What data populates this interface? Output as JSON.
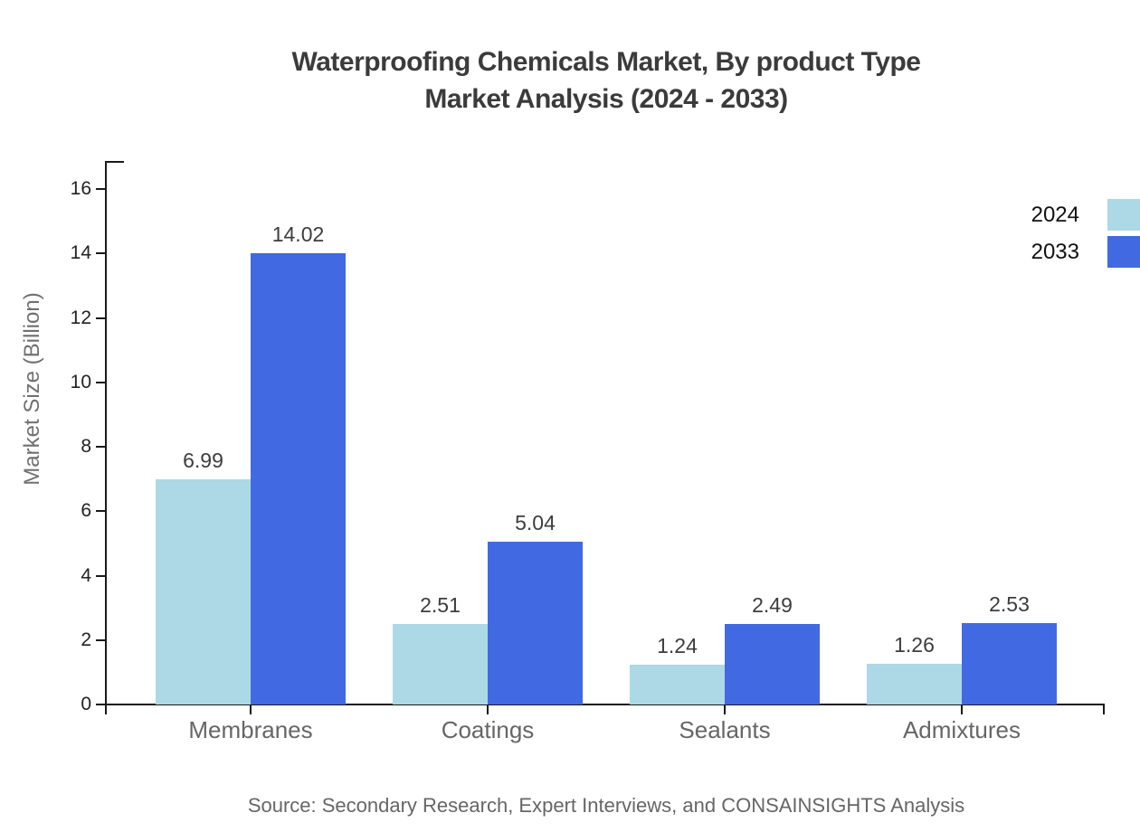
{
  "title": {
    "line1": "Waterproofing Chemicals Market, By product Type",
    "line2": "Market Analysis (2024 - 2033)"
  },
  "source_note": "Source: Secondary Research, Expert Interviews, and CONSAINSIGHTS Analysis",
  "chart_data": {
    "type": "bar",
    "title": "Waterproofing Chemicals Market, By product Type Market Analysis (2024 - 2033)",
    "categories": [
      "Membranes",
      "Coatings",
      "Sealants",
      "Admixtures"
    ],
    "series": [
      {
        "name": "2024",
        "color": "#ADD8E6",
        "values": [
          6.99,
          2.51,
          1.24,
          1.26
        ]
      },
      {
        "name": "2033",
        "color": "#4169E1",
        "values": [
          14.02,
          5.04,
          2.49,
          2.53
        ]
      }
    ],
    "xlabel": "",
    "ylabel": "Market Size (Billion)",
    "yticks": [
      0,
      2,
      4,
      6,
      8,
      10,
      12,
      14,
      16
    ],
    "ylim": [
      0,
      16
    ],
    "grid": false,
    "bar_value_labels": true,
    "legend_position": "top-right",
    "axis_color": "#1a1a1a",
    "text_colors": {
      "title": "#3b3b3b",
      "tick_labels": "#222222",
      "category_labels": "#666666",
      "value_labels": "#3d3d3d",
      "axis_title": "#707070",
      "source": "#666666"
    }
  }
}
